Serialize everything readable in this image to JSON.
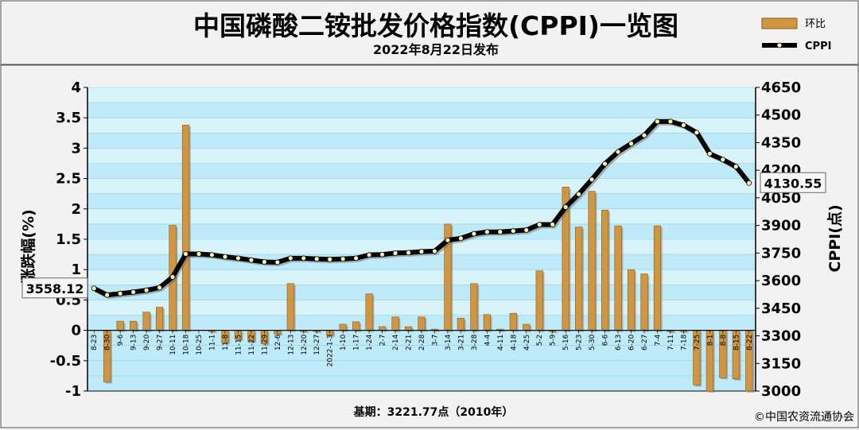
{
  "header": {
    "title": "中国磷酸二铵批发价格指数(CPPI)一览图",
    "subtitle": "2022年8月22日发布"
  },
  "legend": {
    "bar_label": "环比",
    "line_label": "CPPI"
  },
  "footer": {
    "base_note": "基期：3221.77点（2010年）",
    "copyright": "©中国农资流通协会"
  },
  "colors": {
    "plot_bg": "#bfeaf7",
    "grid_band": "#d9f3fb",
    "bar_fill": "#d29540",
    "bar_edge": "#8a5a1c",
    "line": "#000000",
    "marker_fill": "#fff2b3",
    "page_bg": "#f2f2f2"
  },
  "chart_data": {
    "type": "bar",
    "title": "中国磷酸二铵批发价格指数(CPPI)一览图",
    "subtitle": "2022年8月22日发布",
    "ylabel_left": "涨跌幅(%)",
    "ylabel_right": "CPPI(点)",
    "ylim_left": [
      -1,
      4
    ],
    "ylim_right": [
      3000,
      4650
    ],
    "yticks_left": [
      "-1",
      "-0.5",
      "0",
      "0.5",
      "1",
      "1.5",
      "2",
      "2.5",
      "3",
      "3.5",
      "4"
    ],
    "yticks_right": [
      "3000",
      "3150",
      "3300",
      "3450",
      "3600",
      "3750",
      "3900",
      "4050",
      "4200",
      "4350",
      "4500",
      "4650"
    ],
    "categories": [
      "8-23",
      "8-30",
      "9-6",
      "9-13",
      "9-20",
      "9-27",
      "10-11",
      "10-18",
      "10-25",
      "11-1",
      "11-8",
      "11-15",
      "11-22",
      "11-29",
      "12-6",
      "12-13",
      "12-20",
      "12-27",
      "2022-1-3",
      "1-10",
      "1-17",
      "1-24",
      "2-7",
      "2-14",
      "2-21",
      "2-28",
      "3-7",
      "3-14",
      "3-21",
      "3-28",
      "4-4",
      "4-11",
      "4-18",
      "4-25",
      "5-2",
      "5-9",
      "5-16",
      "5-23",
      "5-30",
      "6-6",
      "6-13",
      "6-20",
      "6-27",
      "7-4",
      "7-11",
      "7-18",
      "7-25",
      "8-1",
      "8-8",
      "8-15",
      "8-22"
    ],
    "series": [
      {
        "name": "环比",
        "type": "bar",
        "axis": "left",
        "values": [
          0.0,
          -0.85,
          0.15,
          0.15,
          0.3,
          0.38,
          1.73,
          3.38,
          0.0,
          -0.02,
          -0.2,
          -0.15,
          -0.18,
          -0.22,
          -0.06,
          0.77,
          -0.02,
          -0.02,
          -0.08,
          0.1,
          0.14,
          0.6,
          0.06,
          0.22,
          0.06,
          0.22,
          0.02,
          1.75,
          0.2,
          0.77,
          0.26,
          0.02,
          0.28,
          0.1,
          0.98,
          -0.02,
          2.36,
          1.7,
          2.29,
          1.98,
          1.72,
          1.0,
          0.93,
          1.72,
          -0.02,
          -0.02,
          -0.9,
          -1.0,
          -0.78,
          -0.8,
          -1.0
        ]
      },
      {
        "name": "CPPI",
        "type": "line",
        "axis": "right",
        "values": [
          3558.12,
          3522,
          3530,
          3538,
          3548,
          3562,
          3620,
          3745,
          3745,
          3740,
          3730,
          3722,
          3712,
          3702,
          3700,
          3722,
          3722,
          3718,
          3716,
          3718,
          3722,
          3740,
          3742,
          3750,
          3752,
          3758,
          3760,
          3820,
          3830,
          3855,
          3865,
          3865,
          3870,
          3875,
          3905,
          3905,
          4000,
          4070,
          4150,
          4235,
          4300,
          4345,
          4390,
          4465,
          4465,
          4445,
          4405,
          4290,
          4258,
          4220,
          4130.55
        ]
      }
    ],
    "annotations": {
      "start_label": "3558.12",
      "end_label": "4130.55"
    },
    "grid": true,
    "legend_position": "top-right"
  }
}
